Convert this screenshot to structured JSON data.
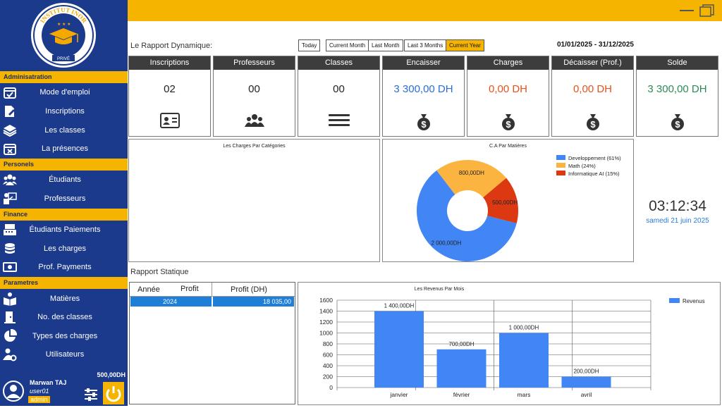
{
  "sidebar": {
    "logo": {
      "text_top": "INSTITUT INOR",
      "text_bottom": "PRIVÉ"
    },
    "sections": [
      {
        "header": "Adminisatration",
        "items": [
          {
            "label": "Mode d'emploi",
            "icon": "calendar-check-icon"
          },
          {
            "label": "Inscriptions",
            "icon": "file-signature-icon"
          },
          {
            "label": "Les classes",
            "icon": "layers-icon"
          },
          {
            "label": "La présences",
            "icon": "calendar-x-icon"
          }
        ]
      },
      {
        "header": "Personels",
        "items": [
          {
            "label": "Étudiants",
            "icon": "users-icon"
          },
          {
            "label": "Professeurs",
            "icon": "teacher-icon"
          }
        ]
      },
      {
        "header": "Finance",
        "items": [
          {
            "label": "Étudiants Paiements",
            "icon": "cash-register-icon"
          },
          {
            "label": "Les charges",
            "icon": "coins-icon"
          },
          {
            "label": "Prof. Payments",
            "icon": "money-bill-icon"
          }
        ]
      },
      {
        "header": "Parametres",
        "items": [
          {
            "label": "Matières",
            "icon": "book-reader-icon"
          },
          {
            "label": "No. des classes",
            "icon": "door-icon"
          },
          {
            "label": "Types des charges",
            "icon": "pie-chart-icon"
          },
          {
            "label": "Utilisateurs",
            "icon": "users-cog-icon"
          }
        ]
      }
    ],
    "user": {
      "name": "Marwan TAJ",
      "username": "user01",
      "role": "admin",
      "balance": "500,00DH"
    }
  },
  "dashboard": {
    "dynamic_title": "Le Rapport Dynamique:",
    "filters": [
      "Today",
      "Current Month",
      "Last Month",
      "Last 3 Months",
      "Current Year"
    ],
    "active_filter": "Current Year",
    "date_range": "01/01/2025 - 31/12/2025",
    "cards": [
      {
        "title": "Inscriptions",
        "value": "02",
        "color": "#222222",
        "icon": "id-card-icon"
      },
      {
        "title": "Professeurs",
        "value": "00",
        "color": "#222222",
        "icon": "users-icon"
      },
      {
        "title": "Classes",
        "value": "00",
        "color": "#222222",
        "icon": "bars-icon"
      },
      {
        "title": "Encaisser",
        "value": "3 300,00 DH",
        "color": "#2a6fd6",
        "icon": "money-bag-icon"
      },
      {
        "title": "Charges",
        "value": "0,00 DH",
        "color": "#e8511a",
        "icon": "money-bag-icon"
      },
      {
        "title": "Décaisser (Prof.)",
        "value": "0,00 DH",
        "color": "#e8511a",
        "icon": "money-bag-icon"
      },
      {
        "title": "Solde",
        "value": "3 300,00 DH",
        "color": "#2e8b57",
        "icon": "money-bag-icon"
      }
    ],
    "charges_panel_title": "Les Charges Par Catégories",
    "clock": {
      "time": "03:12:34",
      "date": "samedi 21 juin 2025"
    },
    "static_title": "Rapport Statique",
    "table": {
      "columns": [
        "Année",
        "Profit",
        "Profit (DH)"
      ],
      "rows": [
        {
          "year": "2024",
          "profit": "18 035,00"
        }
      ]
    }
  },
  "chart_data": [
    {
      "type": "pie",
      "title": "C.A Par Matières",
      "slices": [
        {
          "name": "Developpement (61%)",
          "value": 2000,
          "label": "2 000,00DH",
          "color": "#4285f4"
        },
        {
          "name": "Math (24%)",
          "value": 800,
          "label": "800,00DH",
          "color": "#fbb440"
        },
        {
          "name": "Informatique AI (15%)",
          "value": 500,
          "label": "500,00DH",
          "color": "#dc3912"
        }
      ],
      "legend": "top-right"
    },
    {
      "type": "bar",
      "title": "Les Revenus Par Mois",
      "categories": [
        "janvier",
        "février",
        "mars",
        "avril"
      ],
      "series": [
        {
          "name": "Revenus",
          "values": [
            1400,
            700,
            1000,
            200
          ],
          "color": "#4285f4"
        }
      ],
      "data_labels": [
        "1 400,00DH",
        "700,00DH",
        "1 000,00DH",
        "200,00DH"
      ],
      "yticks": [
        "0",
        "200",
        "400",
        "600",
        "800",
        "1000",
        "1200",
        "1400",
        "1600"
      ],
      "ylim": [
        0,
        1600
      ],
      "grid": true,
      "legend": "top-right"
    }
  ]
}
